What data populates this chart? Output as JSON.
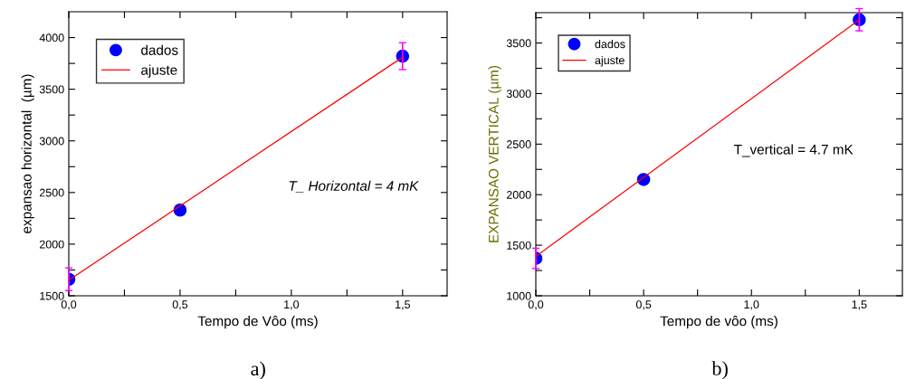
{
  "chart_data": [
    {
      "type": "scatter",
      "xlabel": "Tempo de Vôo (ms)",
      "ylabel": "expansao horizontal  (µm)",
      "xlim": [
        0,
        1.7
      ],
      "ylim": [
        1500,
        4250
      ],
      "xticks": [
        {
          "value": 0,
          "label": "0,0"
        },
        {
          "value": 0.25,
          "label": null
        },
        {
          "value": 0.5,
          "label": "0,5"
        },
        {
          "value": 0.75,
          "label": null
        },
        {
          "value": 1.0,
          "label": "1,0"
        },
        {
          "value": 1.25,
          "label": null
        },
        {
          "value": 1.5,
          "label": "1,5"
        }
      ],
      "yticks": [
        1500,
        {
          "value": 1750,
          "label": null
        },
        2000,
        {
          "value": 2250,
          "label": null
        },
        2500,
        {
          "value": 2750,
          "label": null
        },
        3000,
        {
          "value": 3250,
          "label": null
        },
        3500,
        {
          "value": 3750,
          "label": null
        },
        4000
      ],
      "legend": "top left",
      "series": [
        {
          "name": "dados",
          "marker": "circle",
          "color": "#0000ff",
          "x": [
            0,
            0.5,
            1.5
          ],
          "values": [
            1660,
            2330,
            3820
          ],
          "errors": [
            110,
            null,
            130
          ]
        },
        {
          "name": "ajuste",
          "type": "line",
          "color": "#ff0000",
          "x": [
            0,
            1.5
          ],
          "values": [
            1650,
            3810
          ]
        }
      ],
      "annotations": [
        "T_ Horizontal = 4 mK",
        "a)"
      ]
    },
    {
      "type": "scatter",
      "xlabel": "Tempo de vôo (ms)",
      "ylabel": "EXPANSAO VERTICAL (µm)",
      "xlim": [
        0,
        1.7
      ],
      "ylim": [
        1000,
        3800
      ],
      "xticks": [
        {
          "value": 0,
          "label": "0,0"
        },
        {
          "value": 0.25,
          "label": null
        },
        {
          "value": 0.5,
          "label": "0,5"
        },
        {
          "value": 0.75,
          "label": null
        },
        {
          "value": 1.0,
          "label": "1,0"
        },
        {
          "value": 1.25,
          "label": null
        },
        {
          "value": 1.5,
          "label": "1,5"
        }
      ],
      "yticks": [
        1000,
        {
          "value": 1250,
          "label": null
        },
        1500,
        {
          "value": 1750,
          "label": null
        },
        2000,
        {
          "value": 2250,
          "label": null
        },
        2500,
        {
          "value": 2750,
          "label": null
        },
        3000,
        {
          "value": 3250,
          "label": null
        },
        3500,
        {
          "value": 3750,
          "label": null
        }
      ],
      "legend": "top left",
      "series": [
        {
          "name": "dados",
          "marker": "circle",
          "color": "#0000ff",
          "x": [
            0,
            0.5,
            1.5
          ],
          "values": [
            1370,
            2150,
            3730
          ],
          "errors": [
            100,
            null,
            110
          ]
        },
        {
          "name": "ajuste",
          "type": "line",
          "color": "#ff0000",
          "x": [
            0,
            1.5
          ],
          "values": [
            1390,
            3730
          ]
        }
      ],
      "annotations": [
        "T_vertical = 4.7 mK",
        "b)"
      ]
    }
  ]
}
